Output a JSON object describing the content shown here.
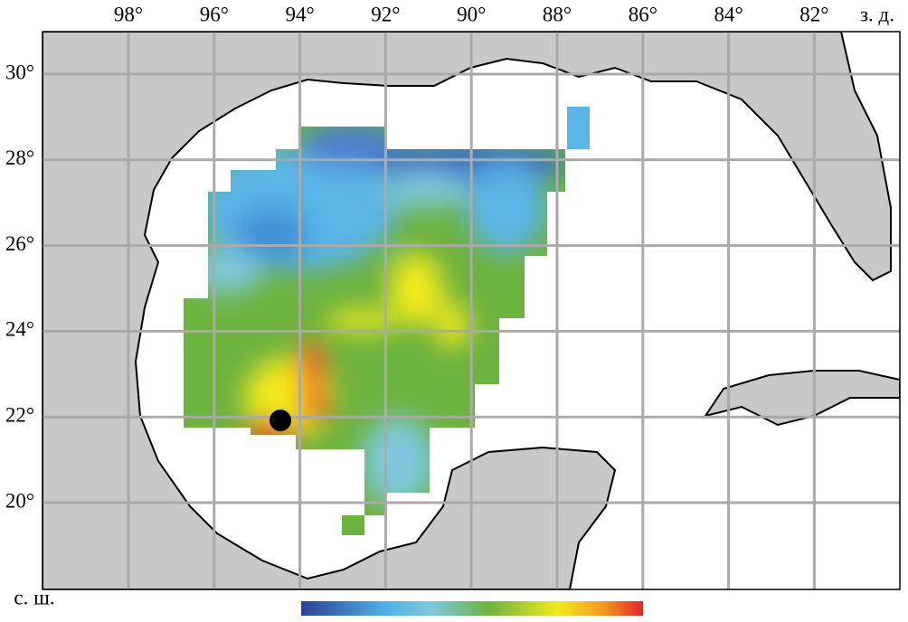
{
  "longitude_labels": [
    "98°",
    "96°",
    "94°",
    "92°",
    "90°",
    "88°",
    "86°",
    "84°",
    "82°"
  ],
  "longitude_unit": "з. д.",
  "latitude_labels": [
    "30°",
    "28°",
    "26°",
    "24°",
    "22°",
    "20°"
  ],
  "latitude_unit": "с. ш."
}
